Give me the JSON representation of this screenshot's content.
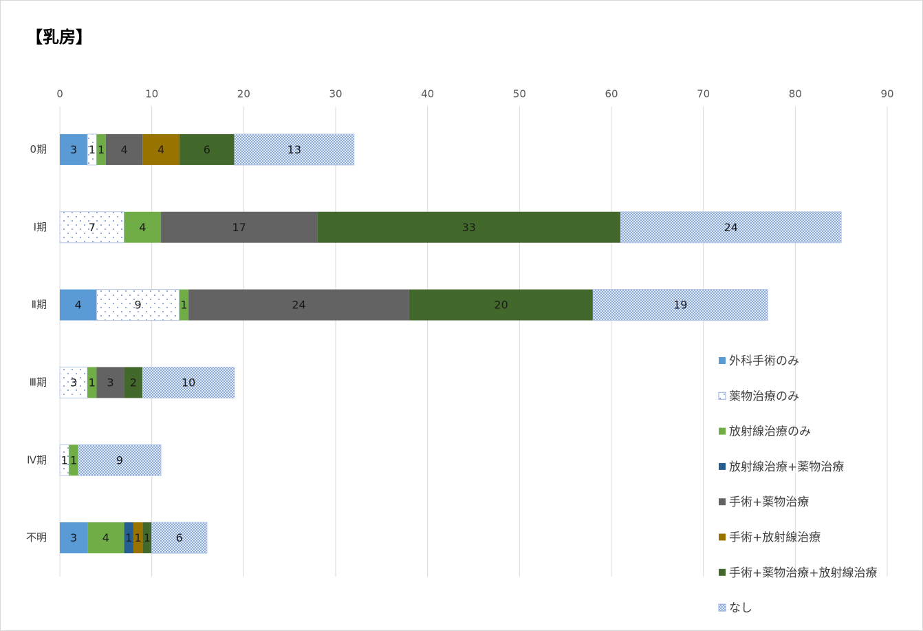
{
  "chart_data": {
    "type": "stacked-bar-horizontal",
    "title": "【乳房】",
    "categories": [
      "0期",
      "Ⅰ期",
      "Ⅱ期",
      "Ⅲ期",
      "Ⅳ期",
      "不明"
    ],
    "series": [
      {
        "name": "外科手術のみ",
        "color": "#5b9bd5",
        "values": [
          3,
          null,
          4,
          null,
          null,
          3
        ]
      },
      {
        "name": "薬物治療のみ",
        "color": "#ffffff",
        "pattern": "dots",
        "values": [
          1,
          7,
          9,
          3,
          1,
          null
        ]
      },
      {
        "name": "放射線治療のみ",
        "color": "#70ad47",
        "values": [
          1,
          4,
          1,
          1,
          1,
          4
        ]
      },
      {
        "name": "放射線治療+薬物治療",
        "color": "#255e91",
        "values": [
          null,
          null,
          null,
          null,
          null,
          1
        ]
      },
      {
        "name": "手術+薬物治療",
        "color": "#636363",
        "values": [
          4,
          17,
          24,
          3,
          null,
          null
        ]
      },
      {
        "name": "手術+放射線治療",
        "color": "#997300",
        "values": [
          4,
          null,
          null,
          null,
          null,
          1
        ]
      },
      {
        "name": "手術+薬物治療+放射線治療",
        "color": "#43682b",
        "values": [
          6,
          33,
          20,
          2,
          null,
          1
        ]
      },
      {
        "name": "なし",
        "color": "#4472c4",
        "pattern": "hatch",
        "values": [
          13,
          24,
          19,
          10,
          9,
          6
        ]
      }
    ],
    "xlim": [
      0,
      90
    ],
    "xticks": [
      0,
      10,
      20,
      30,
      40,
      50,
      60,
      70,
      80,
      90
    ],
    "grid": true,
    "legend": "right"
  }
}
